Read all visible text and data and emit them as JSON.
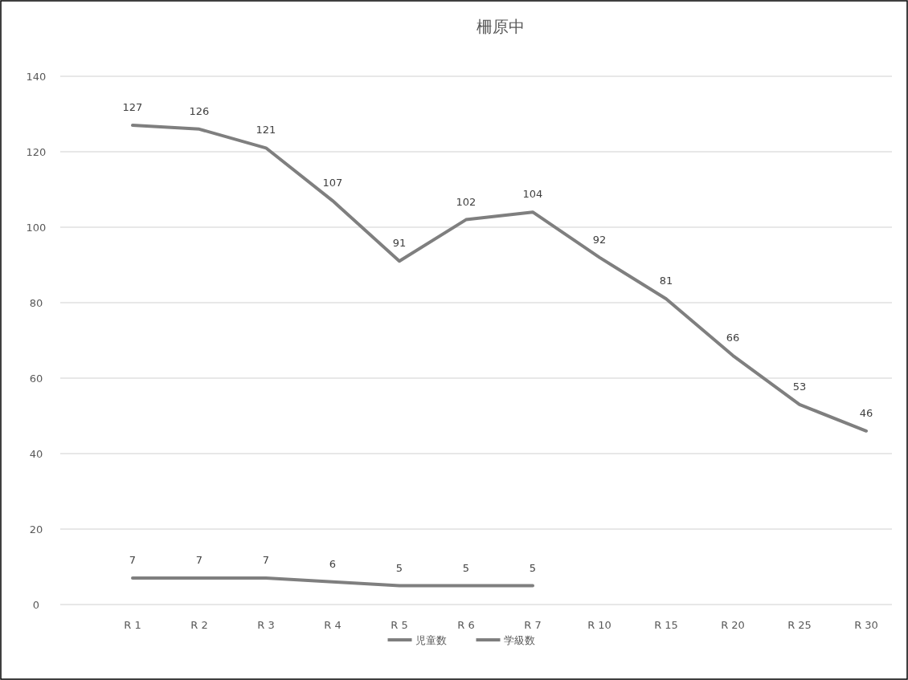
{
  "chart_data": {
    "type": "line",
    "title": "柵原中",
    "categories": [
      "R 1",
      "R 2",
      "R 3",
      "R 4",
      "R 5",
      "R 6",
      "R 7",
      "R 10",
      "R 15",
      "R 20",
      "R 25",
      "R 30"
    ],
    "series": [
      {
        "name": "児童数",
        "color": "#7f7f7f",
        "values": [
          127,
          126,
          121,
          107,
          91,
          102,
          104,
          92,
          81,
          66,
          53,
          46
        ]
      },
      {
        "name": "学級数",
        "color": "#7f7f7f",
        "values": [
          7,
          7,
          7,
          6,
          5,
          5,
          5,
          null,
          null,
          null,
          null,
          null
        ]
      }
    ],
    "ylim": [
      0,
      140
    ],
    "yticks": [
      0,
      20,
      40,
      60,
      80,
      100,
      120,
      140
    ],
    "grid": "y",
    "legend": "bottom",
    "data_labels": true,
    "marker": "none",
    "line_style": "solid"
  }
}
